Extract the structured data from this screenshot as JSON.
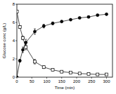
{
  "chart_data": {
    "type": "line",
    "x_label": "Time (min)",
    "y_label": "Glucose conc (g/L)",
    "x": [
      0,
      10,
      20,
      30,
      60,
      90,
      120,
      150,
      180,
      210,
      240,
      270,
      300
    ],
    "series": [
      {
        "color": "#000000",
        "marker": "circle",
        "line_style": "solid",
        "values": [
          0,
          1.8,
          3.0,
          3.8,
          5.0,
          5.6,
          5.9,
          6.1,
          6.3,
          6.5,
          6.6,
          6.8,
          6.9
        ],
        "errors": [
          0,
          0.15,
          0.3,
          0.35,
          0.3,
          0.2,
          0.15,
          0.1,
          0.1,
          0.1,
          0.1,
          0.1,
          0.1
        ]
      },
      {
        "color": "#000000",
        "marker": "square",
        "line_style": "solid",
        "values": [
          7.2,
          5.5,
          4.3,
          3.3,
          1.7,
          1.1,
          0.8,
          0.6,
          0.5,
          0.4,
          0.35,
          0.3,
          0.3
        ],
        "errors": [
          0.1,
          0.15,
          0.2,
          0.3,
          0.25,
          0.15,
          0.1,
          0.1,
          0.05,
          0.05,
          0.05,
          0.05,
          0.05
        ]
      }
    ],
    "xlim": [
      0,
      320
    ],
    "xticks": [
      0,
      50,
      100,
      150,
      200,
      250,
      300
    ],
    "ylim": [
      0,
      8
    ],
    "yticks": [
      0,
      2,
      4,
      6,
      8
    ],
    "grid": false
  }
}
